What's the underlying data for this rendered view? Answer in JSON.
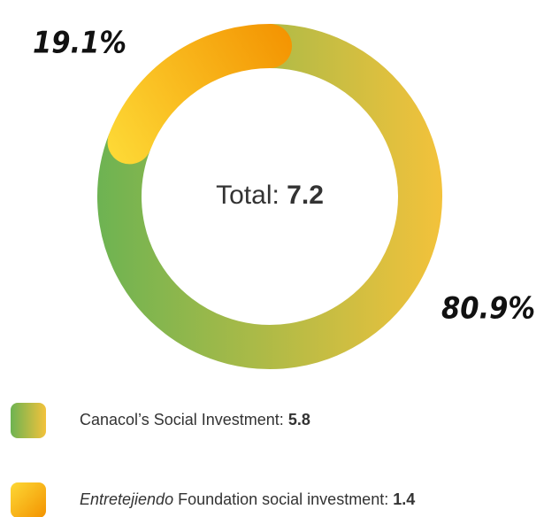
{
  "chart_data": {
    "type": "donut",
    "center_label": "Total:",
    "total": 7.2,
    "values": [
      80.9,
      19.1
    ],
    "value_labels": [
      "80.9%",
      "19.1%"
    ],
    "gradients": [
      [
        "#6db352",
        "#f3c23b"
      ],
      [
        "#fdd835",
        "#f39200"
      ]
    ],
    "legend": [
      {
        "label": "Canacol’s Social Investment:",
        "amount": 5.8
      },
      {
        "emphasis": "Entretejiendo",
        "label": " Foundation social investment:",
        "amount": 1.4
      }
    ]
  }
}
